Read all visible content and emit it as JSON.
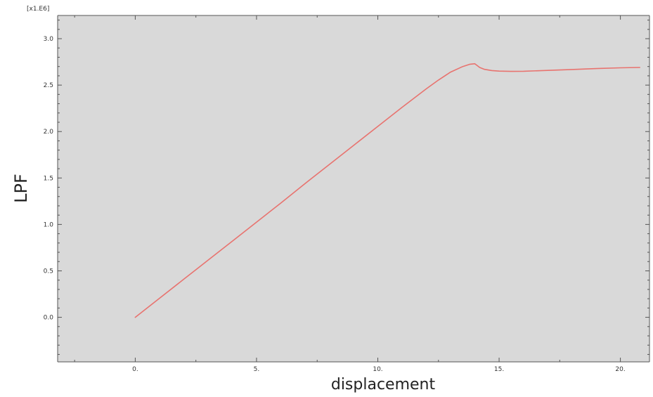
{
  "chart_data": {
    "type": "line",
    "title": "",
    "xlabel": "displacement",
    "ylabel": "LPF",
    "y_multiplier_label": "[x1.E6]",
    "xlim": [
      -3.2,
      21.2
    ],
    "ylim": [
      -0.48,
      3.25
    ],
    "grid": false,
    "x_ticks": [
      0,
      5,
      10,
      15,
      20
    ],
    "x_tick_labels": [
      "0.",
      "5.",
      "10.",
      "15.",
      "20."
    ],
    "y_ticks": [
      0.0,
      0.5,
      1.0,
      1.5,
      2.0,
      2.5,
      3.0
    ],
    "y_tick_labels": [
      "0.0",
      "0.5",
      "1.0",
      "1.5",
      "2.0",
      "2.5",
      "3.0"
    ],
    "series": [
      {
        "color": "#e8736f",
        "x": [
          0,
          1,
          2,
          3,
          4,
          5,
          6,
          7,
          8,
          9,
          10,
          11,
          12,
          12.5,
          13,
          13.5,
          13.8,
          14.0,
          14.1,
          14.2,
          14.4,
          14.7,
          15.0,
          15.5,
          16,
          17,
          18,
          19,
          20,
          20.8
        ],
        "y": [
          0,
          0.205,
          0.41,
          0.615,
          0.82,
          1.025,
          1.23,
          1.44,
          1.645,
          1.85,
          2.055,
          2.26,
          2.46,
          2.555,
          2.64,
          2.7,
          2.725,
          2.73,
          2.71,
          2.69,
          2.67,
          2.657,
          2.651,
          2.648,
          2.649,
          2.658,
          2.668,
          2.678,
          2.686,
          2.69
        ]
      }
    ]
  }
}
